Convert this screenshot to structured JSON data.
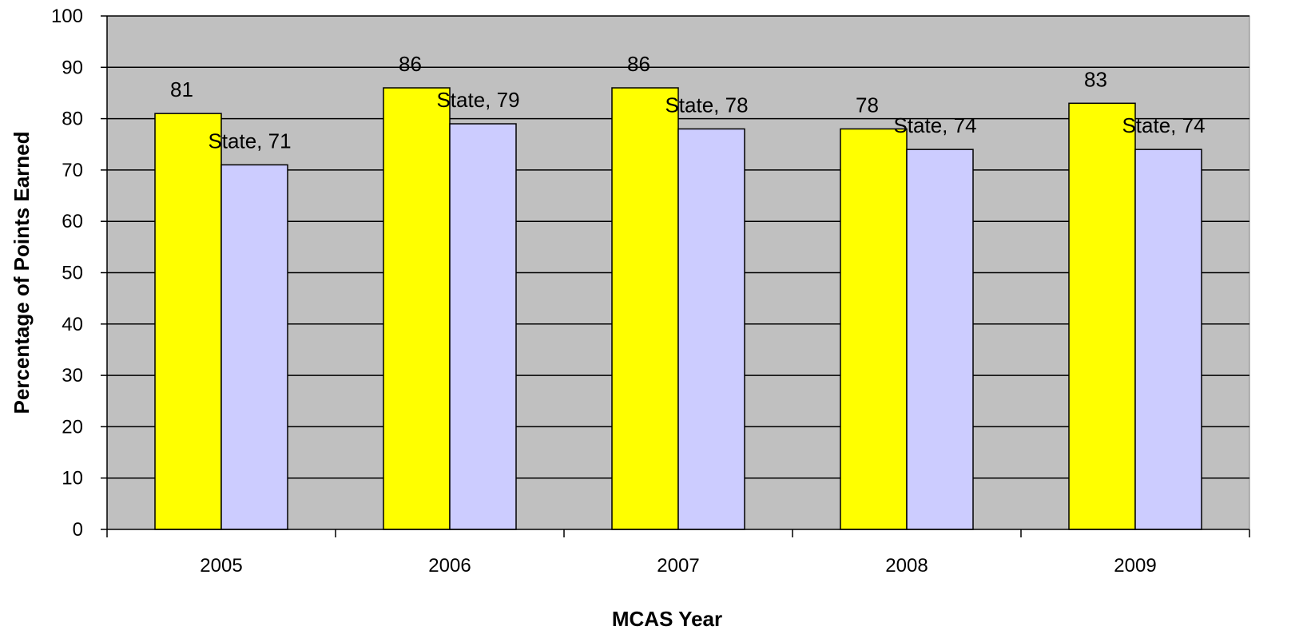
{
  "chart_data": {
    "type": "bar",
    "title": "",
    "xlabel": "MCAS Year",
    "ylabel": "Percentage of Points Earned",
    "ylim": [
      0,
      100
    ],
    "yticks": [
      0,
      10,
      20,
      30,
      40,
      50,
      60,
      70,
      80,
      90,
      100
    ],
    "categories": [
      "2005",
      "2006",
      "2007",
      "2008",
      "2009"
    ],
    "series": [
      {
        "values": [
          81,
          86,
          86,
          78,
          83
        ],
        "color": "#FFFF00",
        "labels": [
          "81",
          "86",
          "86",
          "78",
          "83"
        ]
      },
      {
        "values": [
          71,
          79,
          78,
          74,
          74
        ],
        "color": "#CCCCFF",
        "labels": [
          "State, 71",
          "State, 79",
          "State, 78",
          "State, 74",
          "State, 74"
        ]
      }
    ],
    "plot_background": "#C0C0C0",
    "grid": true,
    "legend": "none"
  }
}
